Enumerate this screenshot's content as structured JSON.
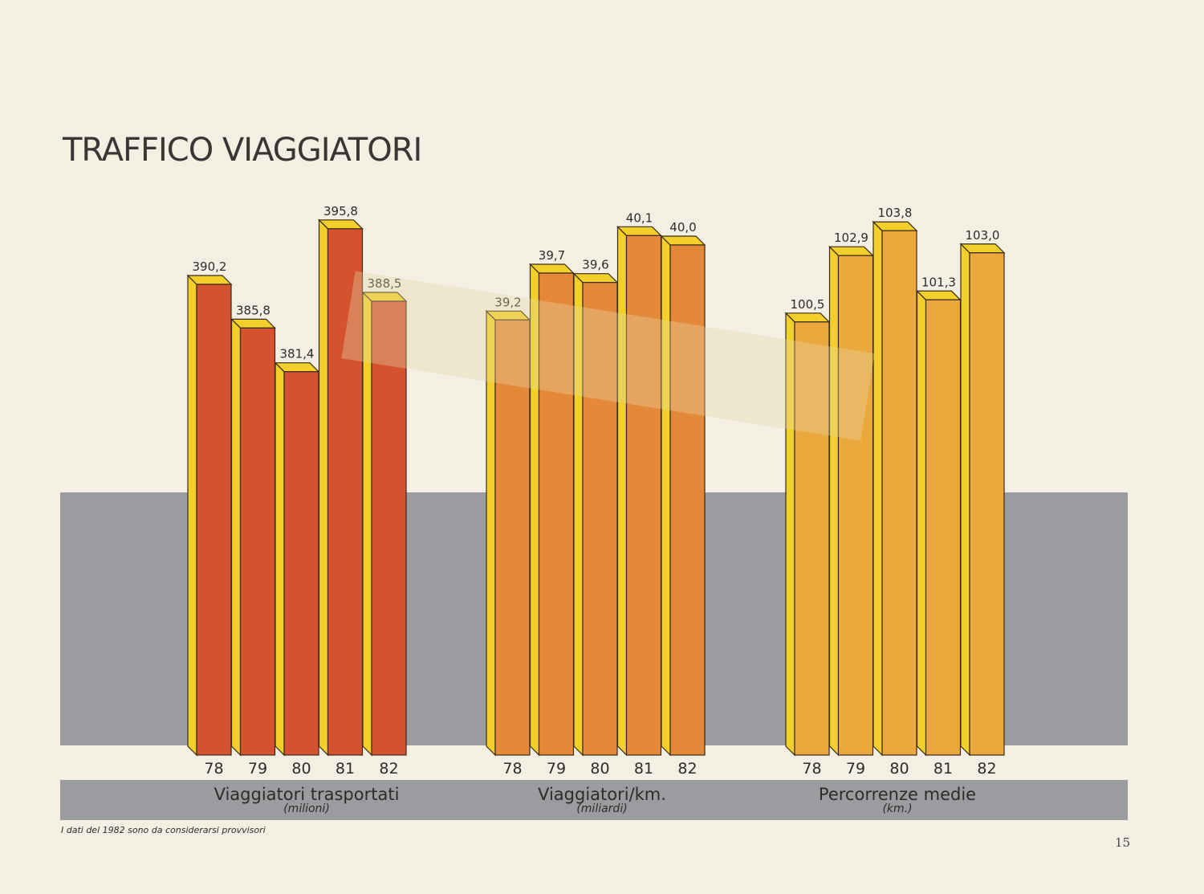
{
  "title": "TRAFFICO VIAGGIATORI",
  "footnote": "I dati del 1982 sono da considerarsi provvisori",
  "page_number": "15",
  "colors": {
    "background": "#f3efe2",
    "band": "#9a9c9f",
    "side": "#f2cf2a",
    "group1_front": "#d4532e",
    "group2_front": "#e4893a",
    "group3_front": "#eba83c"
  },
  "chart_data": [
    {
      "type": "bar",
      "title": "Viaggiatori trasportati",
      "unit": "(milioni)",
      "categories": [
        "78",
        "79",
        "80",
        "81",
        "82"
      ],
      "values": [
        390.2,
        385.8,
        381.4,
        395.8,
        388.5
      ],
      "value_labels": [
        "390,2",
        "385,8",
        "381,4",
        "395,8",
        "388,5"
      ]
    },
    {
      "type": "bar",
      "title": "Viaggiatori/km.",
      "unit": "(miliardi)",
      "categories": [
        "78",
        "79",
        "80",
        "81",
        "82"
      ],
      "values": [
        39.2,
        39.7,
        39.6,
        40.1,
        40.0
      ],
      "value_labels": [
        "39,2",
        "39,7",
        "39,6",
        "40,1",
        "40,0"
      ]
    },
    {
      "type": "bar",
      "title": "Percorrenze medie",
      "unit": "(km.)",
      "categories": [
        "78",
        "79",
        "80",
        "81",
        "82"
      ],
      "values": [
        100.5,
        102.9,
        103.8,
        101.3,
        103.0
      ],
      "value_labels": [
        "100,5",
        "102,9",
        "103,8",
        "101,3",
        "103,0"
      ]
    }
  ]
}
